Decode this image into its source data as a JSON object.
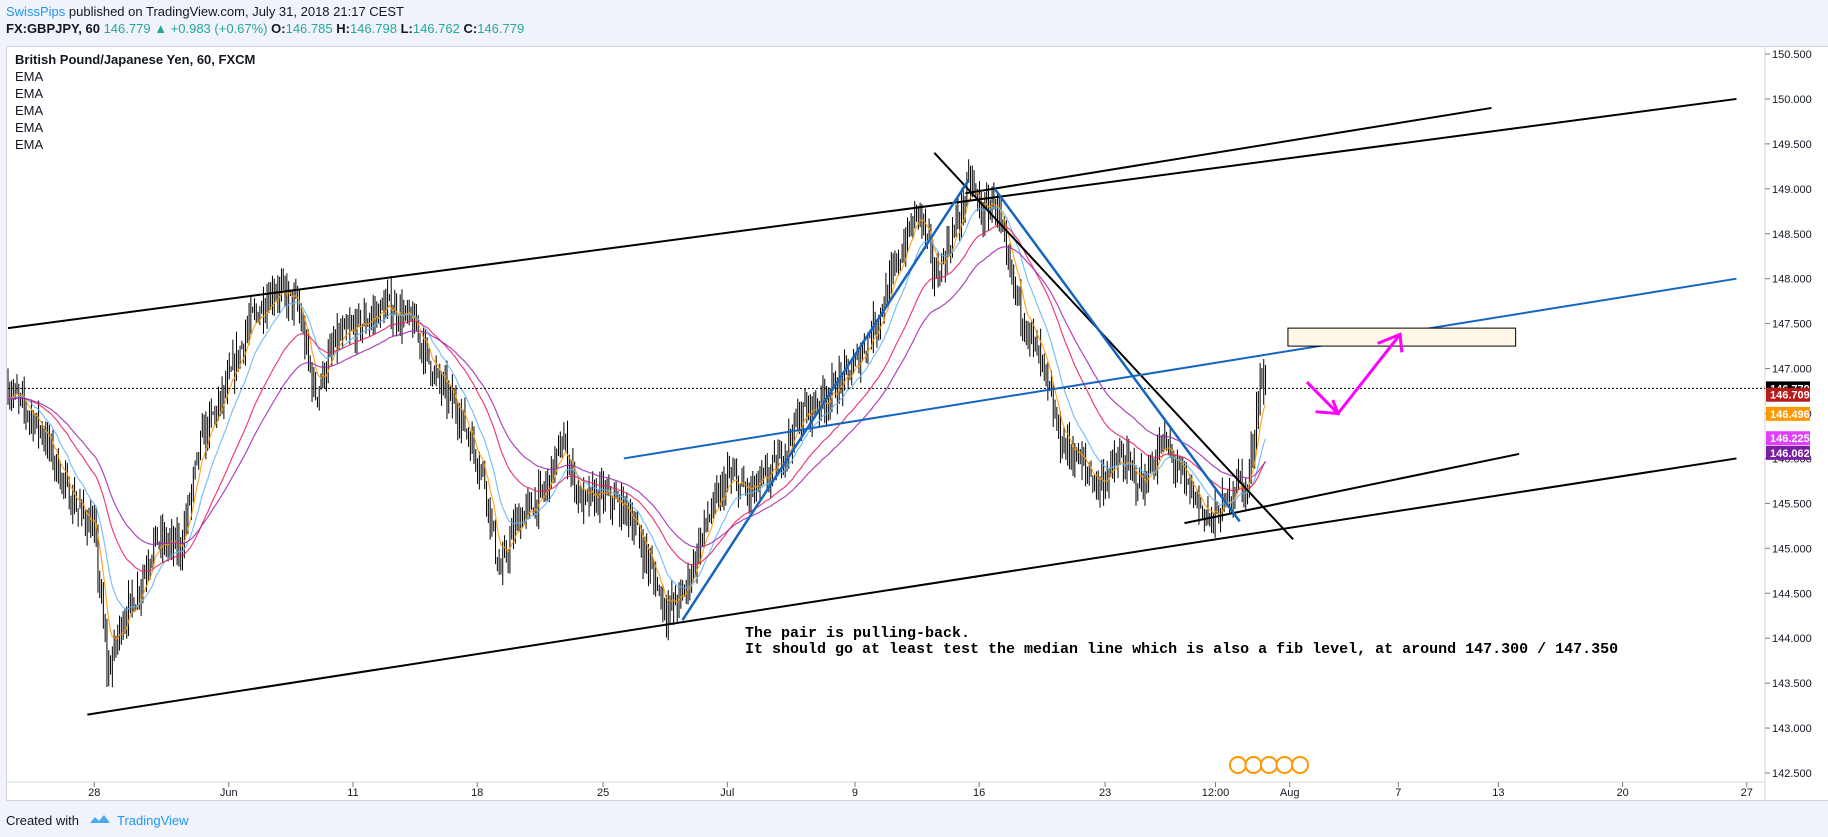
{
  "header": {
    "user": "SwissPips",
    "published": "published on TradingView.com, July 31, 2018 21:17 CEST",
    "symbol": "FX:GBPJPY, 60",
    "last": "146.779",
    "change": "▲ +0.983 (+0.67%)",
    "o_label": "O:",
    "o": "146.785",
    "h_label": "H:",
    "h": "146.798",
    "l_label": "L:",
    "l": "146.762",
    "c_label": "C:",
    "c": "146.779"
  },
  "legend": {
    "title": "British Pound/Japanese Yen, 60, FXCM",
    "indicators": [
      "EMA",
      "EMA",
      "EMA",
      "EMA",
      "EMA"
    ]
  },
  "annotation": {
    "line1": "The pair is pulling-back.",
    "line2": "It should go at least test the median line which is also a fib level, at around 147.300 / 147.350"
  },
  "footer": {
    "created_with": "Created with",
    "brand": "TradingView"
  },
  "colors": {
    "up": "#26a69a",
    "link": "#2196f3",
    "ema_fast": "#ff9800",
    "ema_blue": "#64b5f6",
    "ema_pink": "#e91e63",
    "ema_purple": "#9c27b0",
    "trend_blue": "#1565c0",
    "arrow": "#ff00ff"
  },
  "chart_data": {
    "type": "candlestick",
    "title": "British Pound/Japanese Yen, 60, FXCM",
    "ylim": [
      142.5,
      150.5
    ],
    "y_ticks": [
      "150.500",
      "150.000",
      "149.500",
      "149.000",
      "148.500",
      "148.000",
      "147.500",
      "147.000",
      "146.500",
      "146.000",
      "145.500",
      "145.000",
      "144.500",
      "144.000",
      "143.500",
      "143.000",
      "142.500"
    ],
    "x_ticks": [
      {
        "label": "28",
        "x": 0.05
      },
      {
        "label": "Jun",
        "x": 0.128
      },
      {
        "label": "11",
        "x": 0.2
      },
      {
        "label": "18",
        "x": 0.272
      },
      {
        "label": "25",
        "x": 0.345
      },
      {
        "label": "Jul",
        "x": 0.417
      },
      {
        "label": "9",
        "x": 0.491
      },
      {
        "label": "16",
        "x": 0.563
      },
      {
        "label": "23",
        "x": 0.636
      },
      {
        "label": "12:00",
        "x": 0.7
      },
      {
        "label": "Aug",
        "x": 0.743
      },
      {
        "label": "7",
        "x": 0.806
      },
      {
        "label": "13",
        "x": 0.864
      },
      {
        "label": "20",
        "x": 0.936
      },
      {
        "label": "27",
        "x": 1.008
      }
    ],
    "price_path": [
      {
        "x": 0.0,
        "y": 146.8
      },
      {
        "x": 0.02,
        "y": 146.3
      },
      {
        "x": 0.035,
        "y": 145.6
      },
      {
        "x": 0.05,
        "y": 145.2
      },
      {
        "x": 0.058,
        "y": 143.6
      },
      {
        "x": 0.066,
        "y": 144.2
      },
      {
        "x": 0.075,
        "y": 144.5
      },
      {
        "x": 0.085,
        "y": 145.1
      },
      {
        "x": 0.1,
        "y": 145.0
      },
      {
        "x": 0.112,
        "y": 146.2
      },
      {
        "x": 0.125,
        "y": 146.7
      },
      {
        "x": 0.14,
        "y": 147.5
      },
      {
        "x": 0.155,
        "y": 147.9
      },
      {
        "x": 0.168,
        "y": 147.7
      },
      {
        "x": 0.178,
        "y": 146.7
      },
      {
        "x": 0.19,
        "y": 147.3
      },
      {
        "x": 0.205,
        "y": 147.5
      },
      {
        "x": 0.22,
        "y": 147.7
      },
      {
        "x": 0.235,
        "y": 147.5
      },
      {
        "x": 0.248,
        "y": 146.9
      },
      {
        "x": 0.262,
        "y": 146.5
      },
      {
        "x": 0.276,
        "y": 145.8
      },
      {
        "x": 0.285,
        "y": 144.7
      },
      {
        "x": 0.295,
        "y": 145.3
      },
      {
        "x": 0.31,
        "y": 145.6
      },
      {
        "x": 0.322,
        "y": 146.2
      },
      {
        "x": 0.332,
        "y": 145.5
      },
      {
        "x": 0.345,
        "y": 145.6
      },
      {
        "x": 0.36,
        "y": 145.4
      },
      {
        "x": 0.372,
        "y": 144.8
      },
      {
        "x": 0.382,
        "y": 144.3
      },
      {
        "x": 0.392,
        "y": 144.5
      },
      {
        "x": 0.405,
        "y": 145.3
      },
      {
        "x": 0.418,
        "y": 145.8
      },
      {
        "x": 0.43,
        "y": 145.6
      },
      {
        "x": 0.445,
        "y": 145.9
      },
      {
        "x": 0.46,
        "y": 146.5
      },
      {
        "x": 0.475,
        "y": 146.7
      },
      {
        "x": 0.49,
        "y": 147.0
      },
      {
        "x": 0.505,
        "y": 147.6
      },
      {
        "x": 0.518,
        "y": 148.3
      },
      {
        "x": 0.528,
        "y": 148.8
      },
      {
        "x": 0.538,
        "y": 148.0
      },
      {
        "x": 0.548,
        "y": 148.5
      },
      {
        "x": 0.558,
        "y": 149.1
      },
      {
        "x": 0.565,
        "y": 148.7
      },
      {
        "x": 0.572,
        "y": 148.9
      },
      {
        "x": 0.58,
        "y": 148.1
      },
      {
        "x": 0.59,
        "y": 147.5
      },
      {
        "x": 0.6,
        "y": 147.0
      },
      {
        "x": 0.61,
        "y": 146.2
      },
      {
        "x": 0.62,
        "y": 146.0
      },
      {
        "x": 0.632,
        "y": 145.7
      },
      {
        "x": 0.645,
        "y": 146.0
      },
      {
        "x": 0.658,
        "y": 145.7
      },
      {
        "x": 0.67,
        "y": 146.2
      },
      {
        "x": 0.68,
        "y": 145.8
      },
      {
        "x": 0.69,
        "y": 145.5
      },
      {
        "x": 0.698,
        "y": 145.3
      },
      {
        "x": 0.706,
        "y": 145.5
      },
      {
        "x": 0.713,
        "y": 145.8
      },
      {
        "x": 0.718,
        "y": 145.6
      },
      {
        "x": 0.722,
        "y": 146.2
      },
      {
        "x": 0.726,
        "y": 146.9
      },
      {
        "x": 0.729,
        "y": 146.78
      }
    ],
    "last_price": 146.779,
    "price_labels": [
      {
        "value": "146.709",
        "color": "#b71c1c"
      },
      {
        "value": "146.496",
        "color": "#ff9800"
      },
      {
        "value": "146.225",
        "color": "#e040fb"
      },
      {
        "value": "146.062",
        "color": "#7b1fa2"
      }
    ],
    "annotation_target_zone": [
      147.25,
      147.45
    ]
  }
}
